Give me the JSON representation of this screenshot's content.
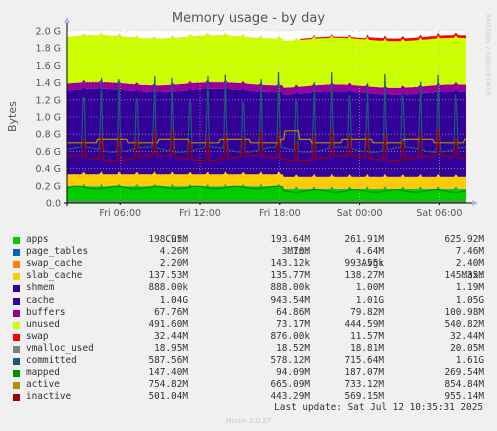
{
  "chart_data": {
    "type": "area",
    "title": "Memory usage - by day",
    "ylabel": "Bytes",
    "xlabel": "",
    "ylim": [
      0,
      2000000000
    ],
    "y_ticks": [
      {
        "value": 0,
        "label": "0.0"
      },
      {
        "value": 200000000,
        "label": "0.2 G"
      },
      {
        "value": 400000000,
        "label": "0.4 G"
      },
      {
        "value": 600000000,
        "label": "0.6 G"
      },
      {
        "value": 800000000,
        "label": "0.8 G"
      },
      {
        "value": 1000000000,
        "label": "1.0 G"
      },
      {
        "value": 1200000000,
        "label": "1.2 G"
      },
      {
        "value": 1400000000,
        "label": "1.4 G"
      },
      {
        "value": 1600000000,
        "label": "1.6 G"
      },
      {
        "value": 1800000000,
        "label": "1.8 G"
      },
      {
        "value": 2000000000,
        "label": "2.0 G"
      }
    ],
    "x_range_hours": [
      0,
      30
    ],
    "x_ticks": [
      {
        "value": 4,
        "label": "Fri 06:00"
      },
      {
        "value": 10,
        "label": "Fri 12:00"
      },
      {
        "value": 16,
        "label": "Fri 18:00"
      },
      {
        "value": 22,
        "label": "Sat 00:00"
      },
      {
        "value": 28,
        "label": "Sat 06:00"
      }
    ],
    "grid": true,
    "legend_placement": "bottom",
    "column_headers": [
      "Cur:",
      "Min:",
      "Avg:",
      "Max:"
    ],
    "series": [
      {
        "name": "apps",
        "color": "#00cc00",
        "kind": "area",
        "cur": "198.95M",
        "min": "193.64M",
        "avg": "261.91M",
        "max": "625.92M"
      },
      {
        "name": "page_tables",
        "color": "#0066b3",
        "kind": "area",
        "cur": "4.26M",
        "min": "3.70M",
        "avg": "4.64M",
        "max": "7.46M"
      },
      {
        "name": "swap_cache",
        "color": "#ff8000",
        "kind": "area",
        "cur": "2.20M",
        "min": "143.12k",
        "avg": "993.55k",
        "max": "2.40M"
      },
      {
        "name": "slab_cache",
        "color": "#ffcc00",
        "kind": "area",
        "cur": "137.53M",
        "min": "135.77M",
        "avg": "138.27M",
        "max": "145.35M"
      },
      {
        "name": "shmem",
        "color": "#330099",
        "kind": "area",
        "cur": "888.00k",
        "min": "888.00k",
        "avg": "1.00M",
        "max": "1.19M"
      },
      {
        "name": "cache",
        "color": "#330099",
        "kind": "area",
        "cur": "1.04G",
        "min": "943.54M",
        "avg": "1.01G",
        "max": "1.05G"
      },
      {
        "name": "buffers",
        "color": "#990099",
        "kind": "area",
        "cur": "67.76M",
        "min": "64.86M",
        "avg": "79.82M",
        "max": "100.98M"
      },
      {
        "name": "unused",
        "color": "#ccff00",
        "kind": "area",
        "cur": "491.60M",
        "min": "73.17M",
        "avg": "444.59M",
        "max": "540.82M"
      },
      {
        "name": "swap",
        "color": "#ff0000",
        "kind": "area",
        "cur": "32.44M",
        "min": "876.00k",
        "avg": "11.57M",
        "max": "32.44M"
      },
      {
        "name": "vmalloc_used",
        "color": "#808080",
        "kind": "line",
        "cur": "18.95M",
        "min": "18.52M",
        "avg": "18.81M",
        "max": "20.05M"
      },
      {
        "name": "committed",
        "color": "#1c5a7a",
        "kind": "line",
        "cur": "587.56M",
        "min": "578.12M",
        "avg": "715.64M",
        "max": "1.61G"
      },
      {
        "name": "mapped",
        "color": "#008f00",
        "kind": "line",
        "cur": "147.40M",
        "min": "94.09M",
        "avg": "187.07M",
        "max": "269.54M"
      },
      {
        "name": "active",
        "color": "#b38f00",
        "kind": "line",
        "cur": "754.82M",
        "min": "665.09M",
        "avg": "733.12M",
        "max": "854.84M"
      },
      {
        "name": "inactive",
        "color": "#a00000",
        "kind": "line",
        "cur": "501.04M",
        "min": "443.29M",
        "avg": "569.15M",
        "max": "955.14M"
      }
    ],
    "last_update": "Last update: Sat Jul 12 10:35:31 2025"
  },
  "side_label": "RRDTOOL / TOBI OETIKER",
  "footer": "Munin 2.0.57"
}
